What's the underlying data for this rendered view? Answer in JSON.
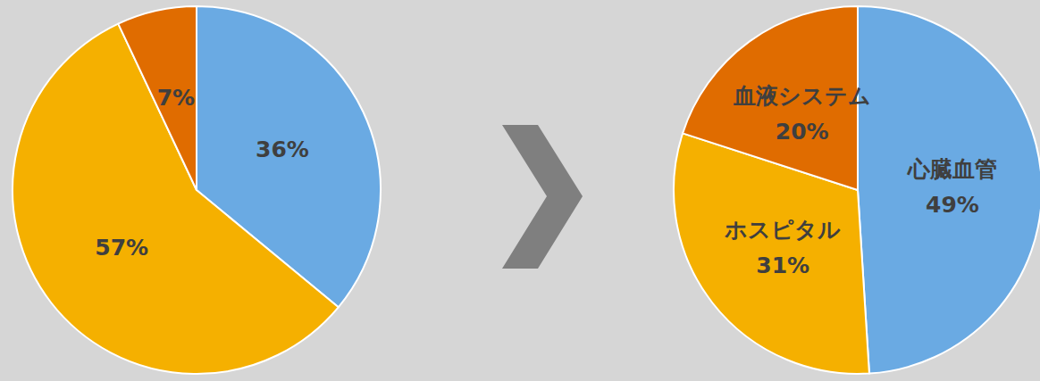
{
  "chart_data": [
    {
      "type": "pie",
      "categories": [
        null,
        null,
        null
      ],
      "values": [
        36,
        57,
        7
      ],
      "value_labels": [
        "36%",
        "57%",
        "7%"
      ],
      "colors": [
        "#6aaae3",
        "#f5b000",
        "#e06c00"
      ],
      "data_labels": true
    },
    {
      "type": "pie",
      "categories": [
        "心臓血管",
        "ホスピタル",
        "血液システム"
      ],
      "values": [
        49,
        31,
        20
      ],
      "value_labels": [
        "49%",
        "31%",
        "20%"
      ],
      "colors": [
        "#6aaae3",
        "#f5b000",
        "#e06c00"
      ],
      "data_labels": true
    }
  ]
}
